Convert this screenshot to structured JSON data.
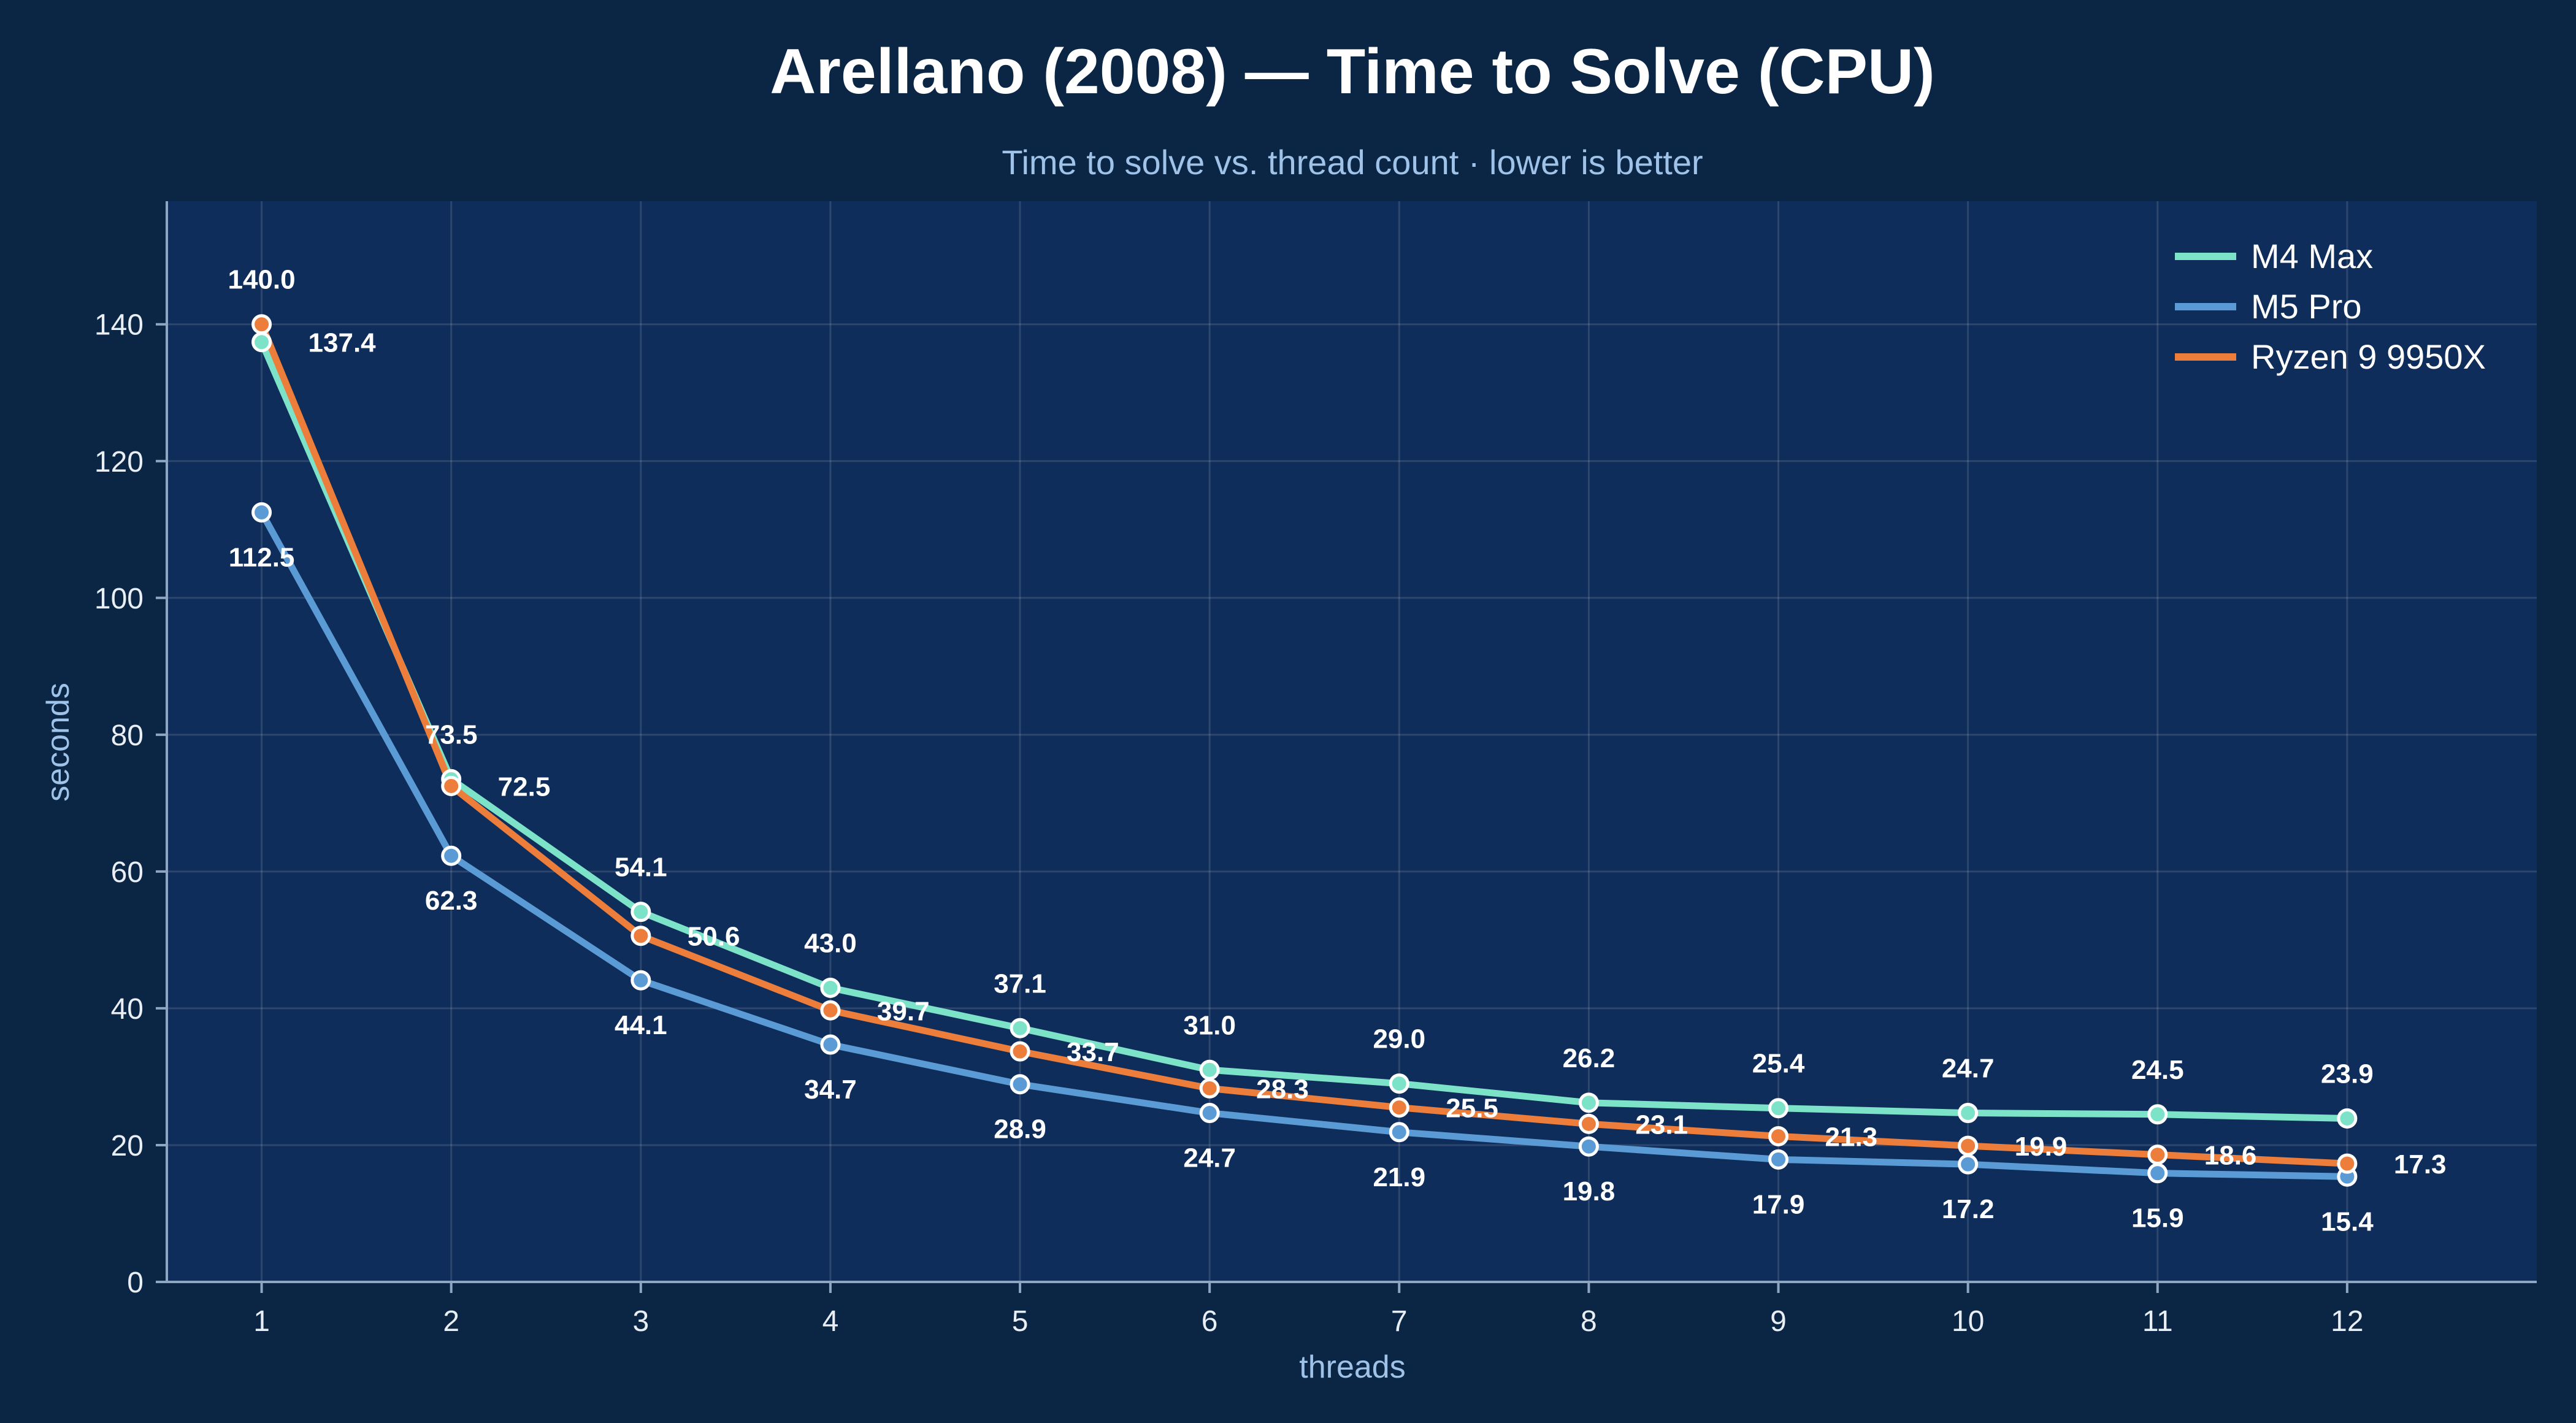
{
  "chart_data": {
    "type": "line",
    "title": "Arellano (2008) — Time to Solve (CPU)",
    "subtitle": "Time to solve vs. thread count · lower is better",
    "xlabel": "threads",
    "ylabel": "seconds",
    "x": [
      1,
      2,
      3,
      4,
      5,
      6,
      7,
      8,
      9,
      10,
      11,
      12
    ],
    "xlim": [
      0.5,
      13
    ],
    "ylim": [
      0,
      158
    ],
    "yticks": [
      0,
      20,
      40,
      60,
      80,
      100,
      120,
      140
    ],
    "grid": true,
    "legend_position": "top-right",
    "background": "#0b2545",
    "plot_background": "#0f2d5a",
    "series": [
      {
        "name": "M4 Max",
        "color": "#7de3c8",
        "values": [
          137.4,
          73.5,
          54.1,
          43.0,
          37.1,
          31.0,
          29.0,
          26.2,
          25.4,
          24.7,
          24.5,
          23.9
        ]
      },
      {
        "name": "M5 Pro",
        "color": "#5b9bd5",
        "values": [
          112.5,
          62.3,
          44.1,
          34.7,
          28.9,
          24.7,
          21.9,
          19.8,
          17.9,
          17.2,
          15.9,
          15.4
        ]
      },
      {
        "name": "Ryzen 9 9950X",
        "color": "#ed7d3a",
        "values": [
          140.0,
          72.5,
          50.6,
          39.7,
          33.7,
          28.3,
          25.5,
          23.1,
          21.3,
          19.9,
          18.6,
          17.3
        ]
      }
    ]
  }
}
